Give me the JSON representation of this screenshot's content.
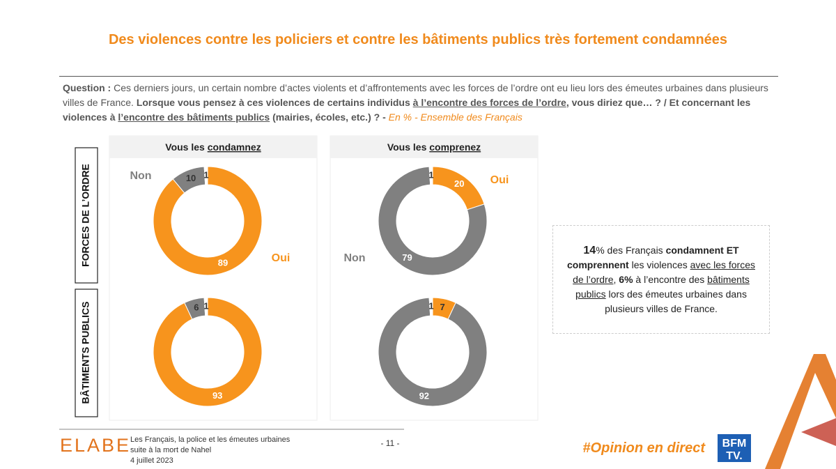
{
  "header": {
    "title": "Des violences contre les policiers et contre les bâtiments publics très fortement condamnées"
  },
  "question": {
    "parts": [
      "Question :",
      " Ces derniers jours, un certain nombre d’actes violents et d’affrontements avec les forces de l’ordre ont eu lieu lors des émeutes urbaines dans plusieurs villes de France. ",
      "Lorsque vous pensez à ces violences de certains individus ",
      "à l’encontre des forces de l’ordre",
      ", vous diriez que… ? / Et concernant les violences à ",
      "l’encontre des bâtiments publics",
      " (mairies, écoles, etc.) ? - ",
      "En % - Ensemble des Français"
    ]
  },
  "columns": [
    {
      "prefix": "Vous les ",
      "keyword": "condamnez"
    },
    {
      "prefix": "Vous les ",
      "keyword": "comprenez"
    }
  ],
  "rows": [
    "FORCES DE L’ORDRE",
    "BÂTIMENTS PUBLICS"
  ],
  "chart_data": [
    {
      "type": "pie",
      "donut": true,
      "categories": [
        "Oui",
        "Non",
        null
      ],
      "values": [
        89,
        10,
        1
      ],
      "colors": [
        "#f7941d",
        "#808080",
        "#ffffff"
      ]
    },
    {
      "type": "pie",
      "donut": true,
      "categories": [
        "Oui",
        "Non",
        null
      ],
      "values": [
        20,
        79,
        1
      ],
      "colors": [
        "#f7941d",
        "#808080",
        "#ffffff"
      ]
    },
    {
      "type": "pie",
      "donut": true,
      "categories": [
        null,
        null,
        null
      ],
      "values": [
        93,
        6,
        1
      ],
      "colors": [
        "#f7941d",
        "#808080",
        "#ffffff"
      ]
    },
    {
      "type": "pie",
      "donut": true,
      "categories": [
        null,
        null,
        null
      ],
      "values": [
        7,
        92,
        1
      ],
      "colors": [
        "#f7941d",
        "#808080",
        "#ffffff"
      ]
    }
  ],
  "side_note": {
    "parts": [
      "14",
      "% des Français ",
      "condamnent ET comprennent",
      " les violences ",
      "avec les forces de l’ordre",
      ", ",
      "6%",
      " à l’encontre des ",
      "bâtiments publics",
      " lors des émeutes urbaines dans plusieurs villes de France."
    ]
  },
  "footer": {
    "logo": "ELABE",
    "study": [
      "Les Français, la police et les émeutes urbaines",
      "suite à la mort de Nahel",
      "4 juillet 2023"
    ],
    "page": "- 11 -",
    "hashtag": "#Opinion en direct",
    "partner": [
      "BFM",
      "TV."
    ]
  }
}
